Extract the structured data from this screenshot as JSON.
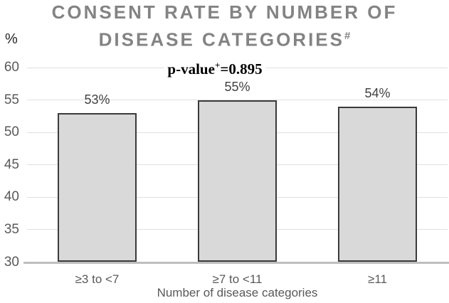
{
  "title": {
    "line1": "CONSENT RATE BY NUMBER OF",
    "line2": "DISEASE CATEGORIES",
    "superscript": "#"
  },
  "y_axis": {
    "unit": "%"
  },
  "annotation": {
    "prefix": "p-value",
    "superscript": "+",
    "value_text": "=0.895"
  },
  "chart_data": {
    "type": "bar",
    "title": "CONSENT RATE BY NUMBER OF DISEASE CATEGORIES#",
    "categories": [
      "≥3 to <7",
      "≥7 to <11",
      "≥11"
    ],
    "values": [
      53,
      55,
      54
    ],
    "data_labels": [
      "53%",
      "55%",
      "54%"
    ],
    "xlabel": "Number of disease categories",
    "ylabel": "%",
    "ylim": [
      30,
      60
    ],
    "yticks": [
      30,
      35,
      40,
      45,
      50,
      55,
      60
    ],
    "grid": true,
    "legend": false,
    "annotation": "p-value+=0.895",
    "colors": {
      "bar_fill": "#d9d9d9",
      "bar_border": "#3a3a3a",
      "gridline": "#e0e0e0",
      "axis_line": "#bfbfbf",
      "tick_label": "#595959",
      "data_label": "#404040",
      "title": "#838383",
      "annotation_text": "#000000",
      "background": "#ffffff"
    }
  }
}
